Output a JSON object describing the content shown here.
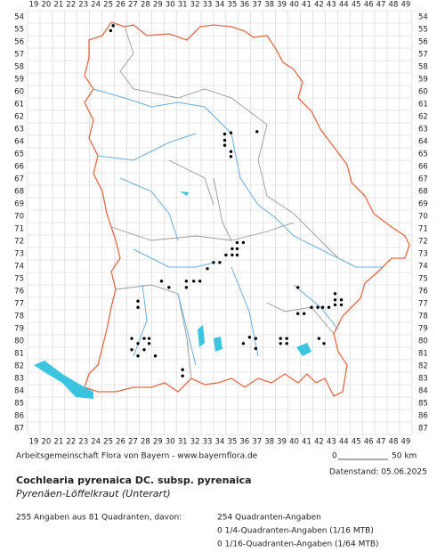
{
  "map": {
    "columns": [
      19,
      20,
      21,
      22,
      23,
      24,
      25,
      26,
      27,
      28,
      29,
      30,
      31,
      32,
      33,
      34,
      35,
      36,
      37,
      38,
      39,
      40,
      41,
      42,
      43,
      44,
      45,
      46,
      47,
      48,
      49
    ],
    "rows": [
      54,
      55,
      56,
      57,
      58,
      59,
      60,
      61,
      62,
      63,
      64,
      65,
      66,
      67,
      68,
      69,
      70,
      71,
      72,
      73,
      74,
      75,
      76,
      77,
      78,
      79,
      80,
      81,
      82,
      83,
      84,
      85,
      86,
      87
    ],
    "dots": [
      [
        25.4,
        54.7
      ],
      [
        25.2,
        55.1
      ],
      [
        34.4,
        63.9
      ],
      [
        34.4,
        64.3
      ],
      [
        34.9,
        63.3
      ],
      [
        34.9,
        64.8
      ],
      [
        34.9,
        65.2
      ],
      [
        37.0,
        63.2
      ],
      [
        34.4,
        63.4
      ],
      [
        35.4,
        72.1
      ],
      [
        35.9,
        72.1
      ],
      [
        35.0,
        72.6
      ],
      [
        35.4,
        72.6
      ],
      [
        35.4,
        73.1
      ],
      [
        35.0,
        73.1
      ],
      [
        34.5,
        73.1
      ],
      [
        34.0,
        73.7
      ],
      [
        33.5,
        73.7
      ],
      [
        33.0,
        74.2
      ],
      [
        32.4,
        75.2
      ],
      [
        31.9,
        75.2
      ],
      [
        31.3,
        75.2
      ],
      [
        31.3,
        75.7
      ],
      [
        29.9,
        75.7
      ],
      [
        29.3,
        75.2
      ],
      [
        27.4,
        76.8
      ],
      [
        27.4,
        77.3
      ],
      [
        40.3,
        75.7
      ],
      [
        43.3,
        76.2
      ],
      [
        43.3,
        76.7
      ],
      [
        43.8,
        76.7
      ],
      [
        43.8,
        77.1
      ],
      [
        43.3,
        77.1
      ],
      [
        42.8,
        77.3
      ],
      [
        42.3,
        77.3
      ],
      [
        41.9,
        77.3
      ],
      [
        41.4,
        77.3
      ],
      [
        40.8,
        77.8
      ],
      [
        40.3,
        77.8
      ],
      [
        36.9,
        79.8
      ],
      [
        36.9,
        80.6
      ],
      [
        38.9,
        79.8
      ],
      [
        39.4,
        79.8
      ],
      [
        39.4,
        80.2
      ],
      [
        38.9,
        80.2
      ],
      [
        42.0,
        79.8
      ],
      [
        42.4,
        80.2
      ],
      [
        26.9,
        79.8
      ],
      [
        27.4,
        80.2
      ],
      [
        27.9,
        79.8
      ],
      [
        28.3,
        79.8
      ],
      [
        28.3,
        80.2
      ],
      [
        27.9,
        80.7
      ],
      [
        27.4,
        81.2
      ],
      [
        26.9,
        80.7
      ],
      [
        28.8,
        81.2
      ],
      [
        31.0,
        82.3
      ],
      [
        31.0,
        82.8
      ],
      [
        35.9,
        80.2
      ],
      [
        36.4,
        79.7
      ]
    ],
    "dot_color": "#000000",
    "scale": {
      "start": "0",
      "end": "50 km"
    }
  },
  "footer": {
    "source": "Arbeitsgemeinschaft Flora von Bayern - www.bayernflora.de",
    "date": "Datenstand: 05.06.2025",
    "title": "Cochlearia pyrenaica DC. subsp. pyrenaica",
    "subtitle": "Pyrenäen-Löffelkraut (Unterart)",
    "summary": "255 Angaben aus 81 Quadranten, davon:",
    "counts": [
      "254 Quadranten-Angaben",
      "0 1/4-Quadranten-Angaben (1/16 MTB)",
      "0 1/16-Quadranten-Angaben (1/64 MTB)"
    ]
  }
}
